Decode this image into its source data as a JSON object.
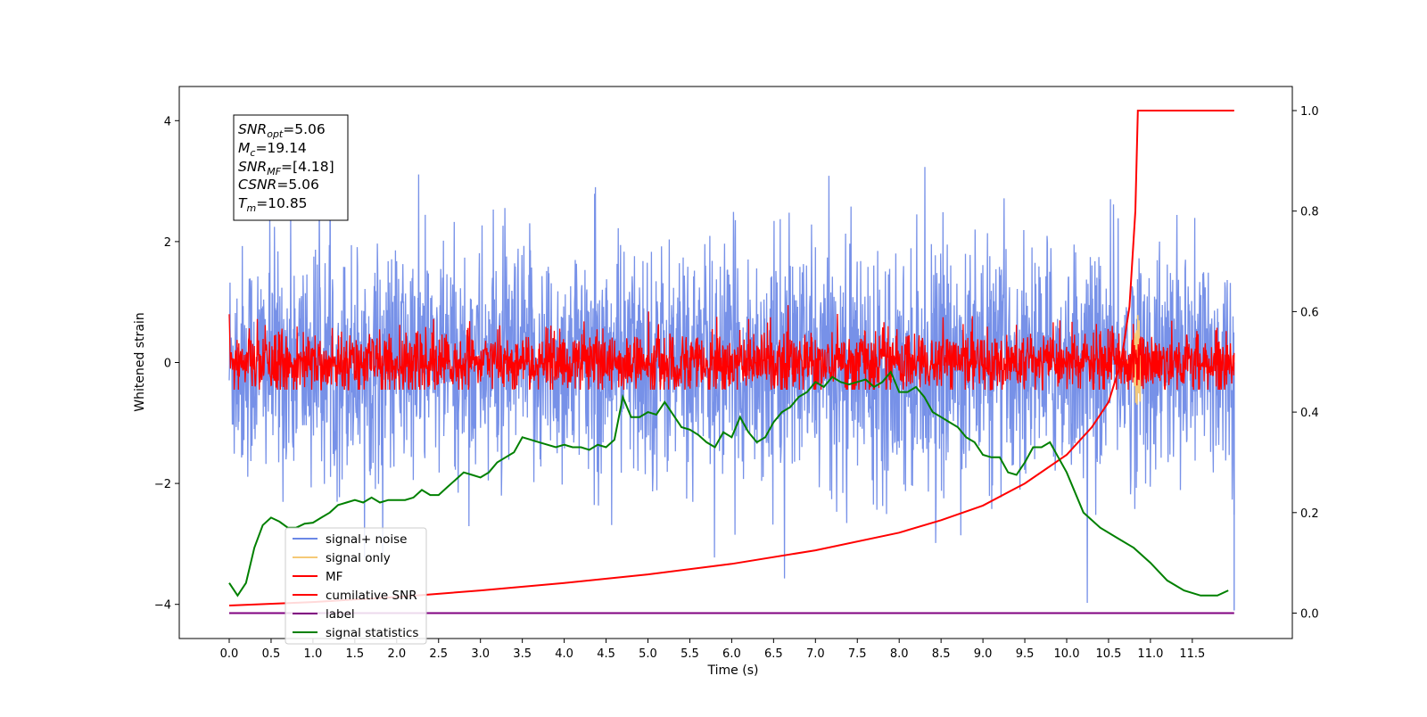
{
  "chart_data": {
    "type": "line",
    "xlabel": "Time (s)",
    "ylabel": "Whitened strain",
    "xlim": [
      -0.6,
      12.6
    ],
    "ylim": [
      -4.55,
      4.58
    ],
    "y2lim": [
      -0.04,
      1.04
    ],
    "x_ticks": [
      "0.0",
      "0.5",
      "1.0",
      "1.5",
      "2.0",
      "2.5",
      "3.0",
      "3.5",
      "4.0",
      "4.5",
      "5.0",
      "5.5",
      "6.0",
      "6.5",
      "7.0",
      "7.5",
      "8.0",
      "8.5",
      "9.0",
      "9.5",
      "10.0",
      "10.5",
      "11.0",
      "11.5"
    ],
    "y_ticks": [
      "−4",
      "−2",
      "0",
      "2",
      "4"
    ],
    "y2_ticks": [
      "0.0",
      "0.2",
      "0.4",
      "0.6",
      "0.8",
      "1.0"
    ],
    "grid": false,
    "legend_position": "lower-left",
    "stats_box": [
      {
        "var": "SNR",
        "sub": "opt",
        "value": "=5.06"
      },
      {
        "var": "M",
        "sub": "c",
        "value": "=19.14"
      },
      {
        "var": "SNR",
        "sub": "MF",
        "value": "=[4.18]"
      },
      {
        "var": "CSNR",
        "sub": "",
        "value": "=5.06"
      },
      {
        "var": "T",
        "sub": "m",
        "value": "=10.85"
      }
    ],
    "series": [
      {
        "name": "signal+ noise",
        "color": "#6b88e6",
        "axis": "left",
        "description_amplitude_std": 0.9,
        "x_range": [
          0.0,
          12.0
        ]
      },
      {
        "name": "signal only",
        "color": "#f5c977",
        "axis": "left",
        "burst_at": 10.85,
        "burst_amplitude": 0.8
      },
      {
        "name": "MF",
        "color": "#ff0000",
        "axis": "left",
        "x_range": [
          0.0,
          12.0
        ],
        "amplitude_std": 0.3
      },
      {
        "name": "cumilative SNR",
        "color": "#ff0000",
        "axis": "right",
        "x": [
          0.0,
          1.0,
          2.0,
          3.0,
          4.0,
          5.0,
          6.0,
          7.0,
          8.0,
          8.5,
          9.0,
          9.5,
          10.0,
          10.3,
          10.5,
          10.65,
          10.75,
          10.82,
          10.85,
          11.0,
          11.5,
          12.0
        ],
        "values": [
          0.015,
          0.022,
          0.032,
          0.045,
          0.06,
          0.077,
          0.098,
          0.125,
          0.16,
          0.185,
          0.214,
          0.258,
          0.315,
          0.37,
          0.42,
          0.5,
          0.61,
          0.8,
          1.0,
          1.0,
          1.0,
          1.0
        ]
      },
      {
        "name": "label",
        "color": "#800080",
        "axis": "right",
        "x": [
          0.0,
          12.0
        ],
        "values": [
          0.0,
          0.0
        ]
      },
      {
        "name": "signal statistics",
        "color": "#008000",
        "axis": "right",
        "x": [
          0.0,
          0.1,
          0.2,
          0.3,
          0.4,
          0.5,
          0.6,
          0.7,
          0.8,
          0.9,
          1.0,
          1.1,
          1.2,
          1.3,
          1.4,
          1.5,
          1.6,
          1.7,
          1.8,
          1.9,
          2.0,
          2.1,
          2.2,
          2.3,
          2.4,
          2.5,
          2.6,
          2.7,
          2.8,
          2.9,
          3.0,
          3.1,
          3.2,
          3.3,
          3.4,
          3.5,
          3.6,
          3.7,
          3.8,
          3.9,
          4.0,
          4.1,
          4.2,
          4.3,
          4.4,
          4.5,
          4.6,
          4.7,
          4.8,
          4.9,
          5.0,
          5.1,
          5.2,
          5.3,
          5.4,
          5.5,
          5.6,
          5.7,
          5.8,
          5.9,
          6.0,
          6.1,
          6.2,
          6.3,
          6.4,
          6.5,
          6.6,
          6.7,
          6.8,
          6.9,
          7.0,
          7.1,
          7.2,
          7.3,
          7.4,
          7.5,
          7.6,
          7.7,
          7.8,
          7.9,
          8.0,
          8.1,
          8.2,
          8.3,
          8.4,
          8.5,
          8.6,
          8.7,
          8.8,
          8.9,
          9.0,
          9.1,
          9.2,
          9.3,
          9.4,
          9.5,
          9.6,
          9.7,
          9.8,
          9.9,
          10.0,
          10.2,
          10.4,
          10.6,
          10.8,
          11.0,
          11.2,
          11.4,
          11.6,
          11.8,
          11.93
        ],
        "values": [
          0.06,
          0.035,
          0.06,
          0.13,
          0.175,
          0.19,
          0.182,
          0.17,
          0.17,
          0.178,
          0.18,
          0.19,
          0.2,
          0.215,
          0.22,
          0.225,
          0.22,
          0.23,
          0.22,
          0.225,
          0.225,
          0.225,
          0.23,
          0.245,
          0.235,
          0.235,
          0.25,
          0.265,
          0.28,
          0.275,
          0.27,
          0.28,
          0.3,
          0.31,
          0.32,
          0.35,
          0.345,
          0.34,
          0.335,
          0.33,
          0.335,
          0.33,
          0.33,
          0.325,
          0.335,
          0.33,
          0.345,
          0.43,
          0.39,
          0.39,
          0.4,
          0.395,
          0.42,
          0.395,
          0.37,
          0.365,
          0.355,
          0.34,
          0.33,
          0.36,
          0.35,
          0.39,
          0.36,
          0.34,
          0.35,
          0.38,
          0.4,
          0.41,
          0.43,
          0.44,
          0.46,
          0.45,
          0.47,
          0.46,
          0.455,
          0.46,
          0.465,
          0.45,
          0.46,
          0.48,
          0.44,
          0.44,
          0.45,
          0.43,
          0.4,
          0.39,
          0.38,
          0.37,
          0.35,
          0.34,
          0.315,
          0.31,
          0.31,
          0.28,
          0.275,
          0.3,
          0.33,
          0.33,
          0.34,
          0.31,
          0.28,
          0.2,
          0.17,
          0.15,
          0.13,
          0.1,
          0.065,
          0.045,
          0.035,
          0.035,
          0.045
        ]
      }
    ]
  }
}
